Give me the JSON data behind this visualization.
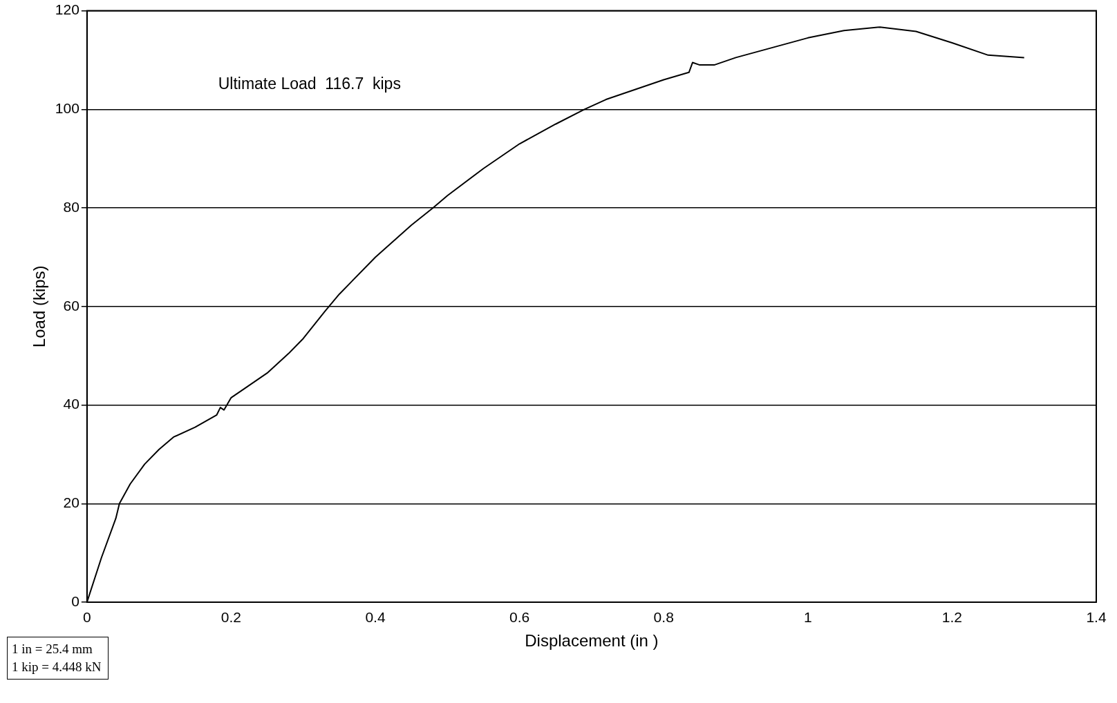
{
  "chart_data": {
    "type": "line",
    "xlabel": "Displacement (in )",
    "ylabel": "Load (kips)",
    "x": [
      0,
      0.02,
      0.04,
      0.045,
      0.06,
      0.08,
      0.1,
      0.12,
      0.15,
      0.18,
      0.185,
      0.19,
      0.2,
      0.22,
      0.25,
      0.28,
      0.3,
      0.33,
      0.35,
      0.4,
      0.45,
      0.48,
      0.5,
      0.55,
      0.6,
      0.65,
      0.69,
      0.72,
      0.76,
      0.8,
      0.835,
      0.84,
      0.85,
      0.87,
      0.9,
      0.95,
      1,
      1.05,
      1.1,
      1.15,
      1.2,
      1.25,
      1.3
    ],
    "series": [
      {
        "color": "#000000",
        "values": [
          0,
          9,
          17,
          20,
          24,
          28,
          31,
          33.5,
          35.5,
          38,
          39.5,
          39,
          41.5,
          43.5,
          46.5,
          50.5,
          53.5,
          59,
          62.5,
          70,
          76.5,
          80,
          82.5,
          88,
          93,
          97,
          100,
          102,
          104,
          106,
          107.5,
          109.5,
          109,
          109,
          110.5,
          112.5,
          114.5,
          116,
          116.7,
          115.8,
          113.5,
          111,
          110.5
        ]
      }
    ],
    "xlim": [
      0,
      1.4
    ],
    "xticks": [
      0,
      0.2,
      0.4,
      0.6,
      0.8,
      1,
      1.2,
      1.4
    ],
    "ylim": [
      0,
      120
    ],
    "yticks": [
      0,
      20,
      40,
      60,
      80,
      100,
      120
    ],
    "grid": "y",
    "marker": "none",
    "line_style": "solid",
    "annotations": [
      "Ultimate Load  116.7  kips",
      "1 in = 25.4 mm",
      "1 kip = 4.448 kN"
    ]
  }
}
